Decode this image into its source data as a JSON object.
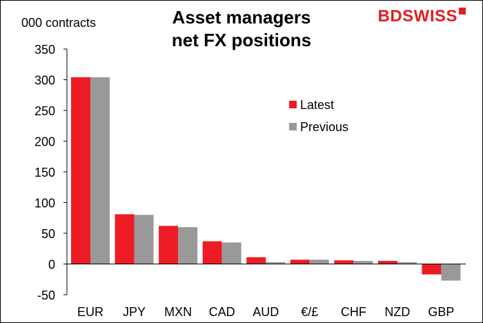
{
  "brand": {
    "part1": "BD",
    "part2": "SWISS"
  },
  "colors": {
    "latest": "#ed1c24",
    "previous": "#999999",
    "axis": "#000000"
  },
  "chart_data": {
    "type": "bar",
    "title": "Asset managers net FX positions",
    "title_lines": [
      "Asset managers",
      "net FX positions"
    ],
    "ylabel": "000 contracts",
    "xlabel": "",
    "ylim": [
      -50,
      350
    ],
    "yticks": [
      350,
      300,
      250,
      200,
      150,
      100,
      50,
      0,
      -50
    ],
    "grid": false,
    "legend_position": "upper-right",
    "categories": [
      "EUR",
      "JPY",
      "MXN",
      "CAD",
      "AUD",
      "€/£",
      "CHF",
      "NZD",
      "GBP"
    ],
    "series": [
      {
        "name": "Latest",
        "values": [
          304,
          81,
          62,
          37,
          11,
          7,
          6,
          5,
          -17
        ]
      },
      {
        "name": "Previous",
        "values": [
          304,
          80,
          60,
          35,
          3,
          7,
          5,
          3,
          -27
        ]
      }
    ]
  }
}
